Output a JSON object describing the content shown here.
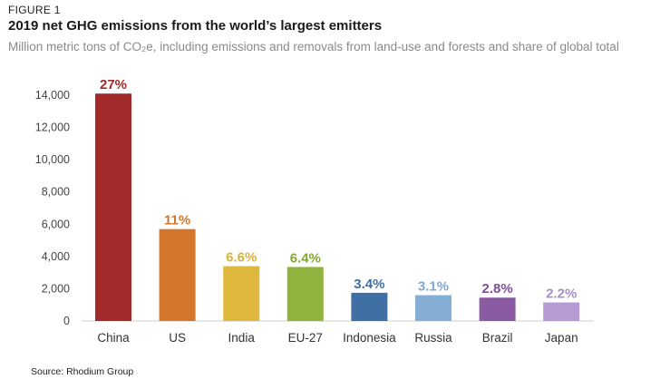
{
  "figure_label": "FIGURE 1",
  "source": "Source: Rhodium Group",
  "chart_data": {
    "type": "bar",
    "title": "2019 net GHG emissions from the world’s largest emitters",
    "subtitle": "Million metric tons of CO₂e, including emissions and removals from land-use and forests and share of global total",
    "xlabel": "",
    "ylabel": "",
    "ylim": [
      0,
      14000
    ],
    "yticks": [
      0,
      2000,
      4000,
      6000,
      8000,
      10000,
      12000,
      14000
    ],
    "ytick_labels": [
      "0",
      "2,000",
      "4,000",
      "6,000",
      "8,000",
      "10,000",
      "12,000",
      "14,000"
    ],
    "grid": false,
    "categories": [
      "China",
      "US",
      "India",
      "EU-27",
      "Indonesia",
      "Russia",
      "Brazil",
      "Japan"
    ],
    "values": [
      14100,
      5700,
      3400,
      3350,
      1750,
      1600,
      1450,
      1150
    ],
    "data_labels": [
      "27%",
      "11%",
      "6.6%",
      "6.4%",
      "3.4%",
      "3.1%",
      "2.8%",
      "2.2%"
    ],
    "colors": [
      "#a32a2a",
      "#d4752c",
      "#ddb83c",
      "#8fb33c",
      "#3f6fa3",
      "#85aed4",
      "#8a5ba3",
      "#b59ad4"
    ],
    "label_colors": [
      "#a32a2a",
      "#d4752c",
      "#d9b23a",
      "#7fa832",
      "#3f6fa3",
      "#7fa8d4",
      "#7b4f98",
      "#a98ccd"
    ]
  }
}
